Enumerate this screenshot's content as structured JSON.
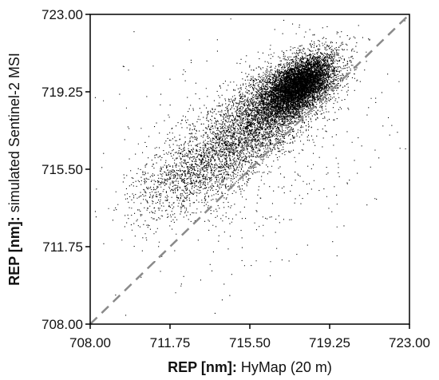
{
  "chart_data": {
    "type": "scatter",
    "title": "",
    "xlabel_bold": "REP [nm]:",
    "xlabel_rest": " HyMap (20 m)",
    "ylabel_bold": "REP [nm]:",
    "ylabel_rest": " simulated Sentinel-2 MSI",
    "xlim": [
      708.0,
      723.0
    ],
    "ylim": [
      708.0,
      723.0
    ],
    "x_ticks": [
      "708.00",
      "711.75",
      "715.50",
      "719.25",
      "723.00"
    ],
    "y_ticks": [
      "708.00",
      "711.75",
      "715.50",
      "719.25",
      "723.00"
    ],
    "x_tick_values": [
      708.0,
      711.75,
      715.5,
      719.25,
      723.0
    ],
    "y_tick_values": [
      708.0,
      711.75,
      715.5,
      719.25,
      723.0
    ],
    "grid": false,
    "reference_line": {
      "style": "dashed",
      "color": "#8a8a8a",
      "from": [
        708.0,
        708.0
      ],
      "to": [
        723.0,
        723.0
      ]
    },
    "series": [
      {
        "marker_color": "#000000",
        "point_clusters": [
          {
            "center": [
              717.8,
              719.6
            ],
            "spread": [
              0.8,
              0.7
            ],
            "count": 6000,
            "correlation": 0.55
          },
          {
            "center": [
              716.6,
              718.6
            ],
            "spread": [
              1.4,
              1.2
            ],
            "count": 3500,
            "correlation": 0.6
          },
          {
            "center": [
              714.2,
              716.3
            ],
            "spread": [
              1.6,
              1.3
            ],
            "count": 1800,
            "correlation": 0.55
          },
          {
            "center": [
              712.0,
              714.8
            ],
            "spread": [
              1.2,
              1.0
            ],
            "count": 500,
            "correlation": 0.5
          },
          {
            "center": [
              715.5,
              716.5
            ],
            "spread": [
              3.5,
              3.2
            ],
            "count": 500,
            "correlation": 0.3
          }
        ]
      }
    ]
  }
}
